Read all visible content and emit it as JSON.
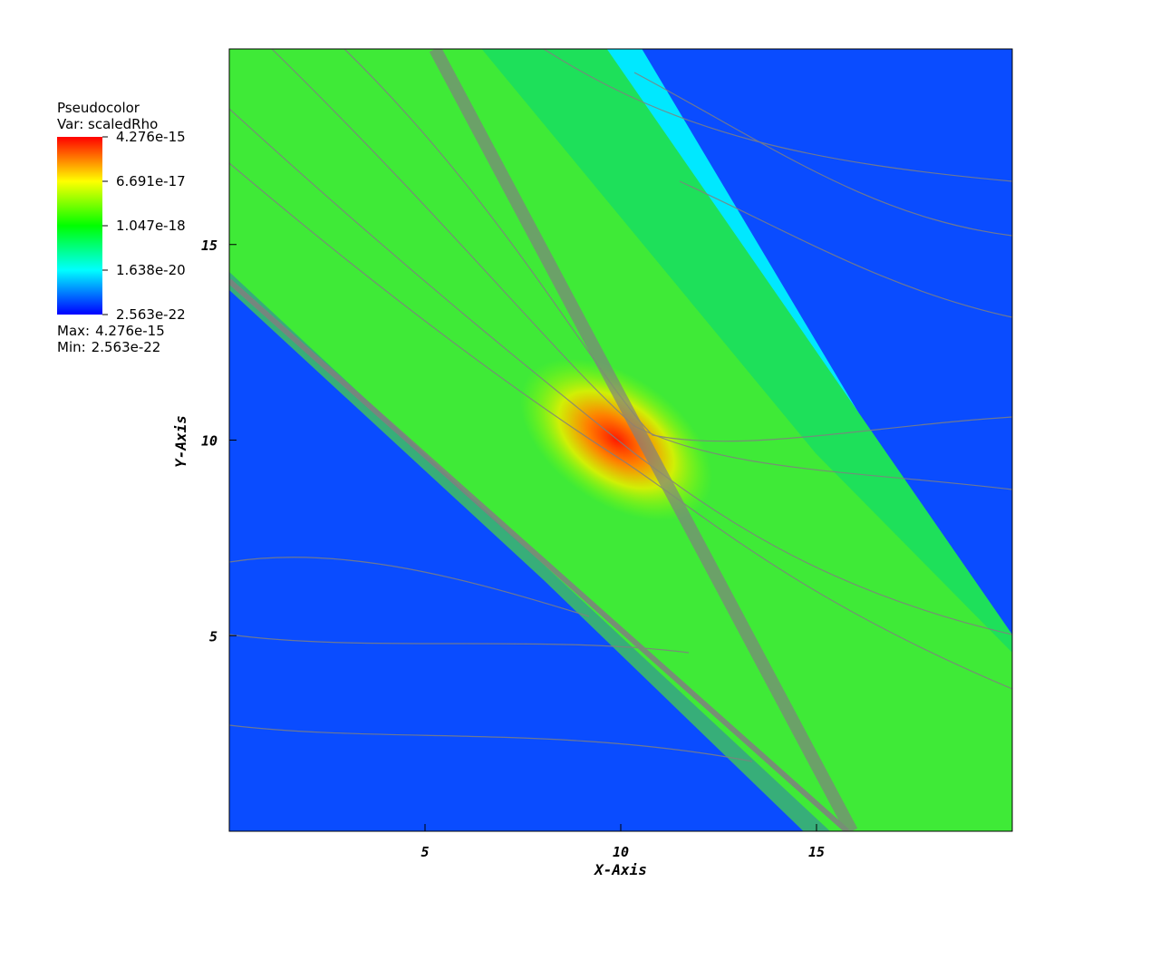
{
  "chart_data": {
    "type": "pseudocolor",
    "title": "Pseudocolor",
    "subtitle": "Var: scaledRho",
    "xlabel": "X-Axis",
    "ylabel": "Y-Axis",
    "xlim": [
      0,
      20
    ],
    "ylim": [
      0,
      20
    ],
    "xticks": [
      5,
      10,
      15
    ],
    "yticks": [
      5,
      10,
      15
    ],
    "colorbar": {
      "log_scale": true,
      "range": [
        2.563e-22,
        4.276e-15
      ],
      "ticks": [
        4.276e-15,
        6.691e-17,
        1.047e-18,
        1.638e-20,
        2.563e-22
      ],
      "colors": [
        "#0000ff",
        "#00ffff",
        "#00ff00",
        "#ffff00",
        "#ff0000"
      ],
      "max_label": "Max:",
      "max": 4.276e-15,
      "min_label": "Min:",
      "min": 2.563e-22
    }
  }
}
